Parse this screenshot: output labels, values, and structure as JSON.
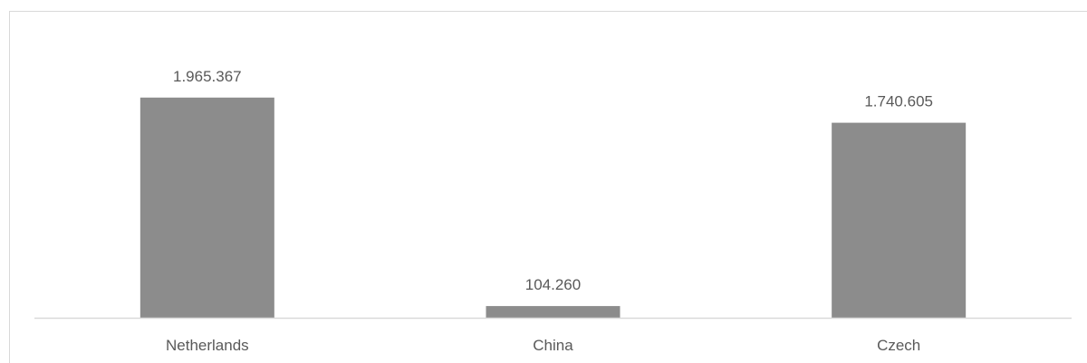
{
  "chart_data": {
    "type": "bar",
    "categories": [
      "Netherlands",
      "China",
      "Czech"
    ],
    "values": [
      1965367,
      104260,
      1740605
    ],
    "value_labels": [
      "1.965.367",
      "104.260",
      "1.740.605"
    ],
    "title": "",
    "xlabel": "",
    "ylabel": "",
    "ylim": [
      0,
      2000000
    ],
    "grid": false,
    "legend": "none",
    "bar_color": "#8c8c8c",
    "axis_color": "#d9d9d9",
    "label_color": "#595959"
  }
}
